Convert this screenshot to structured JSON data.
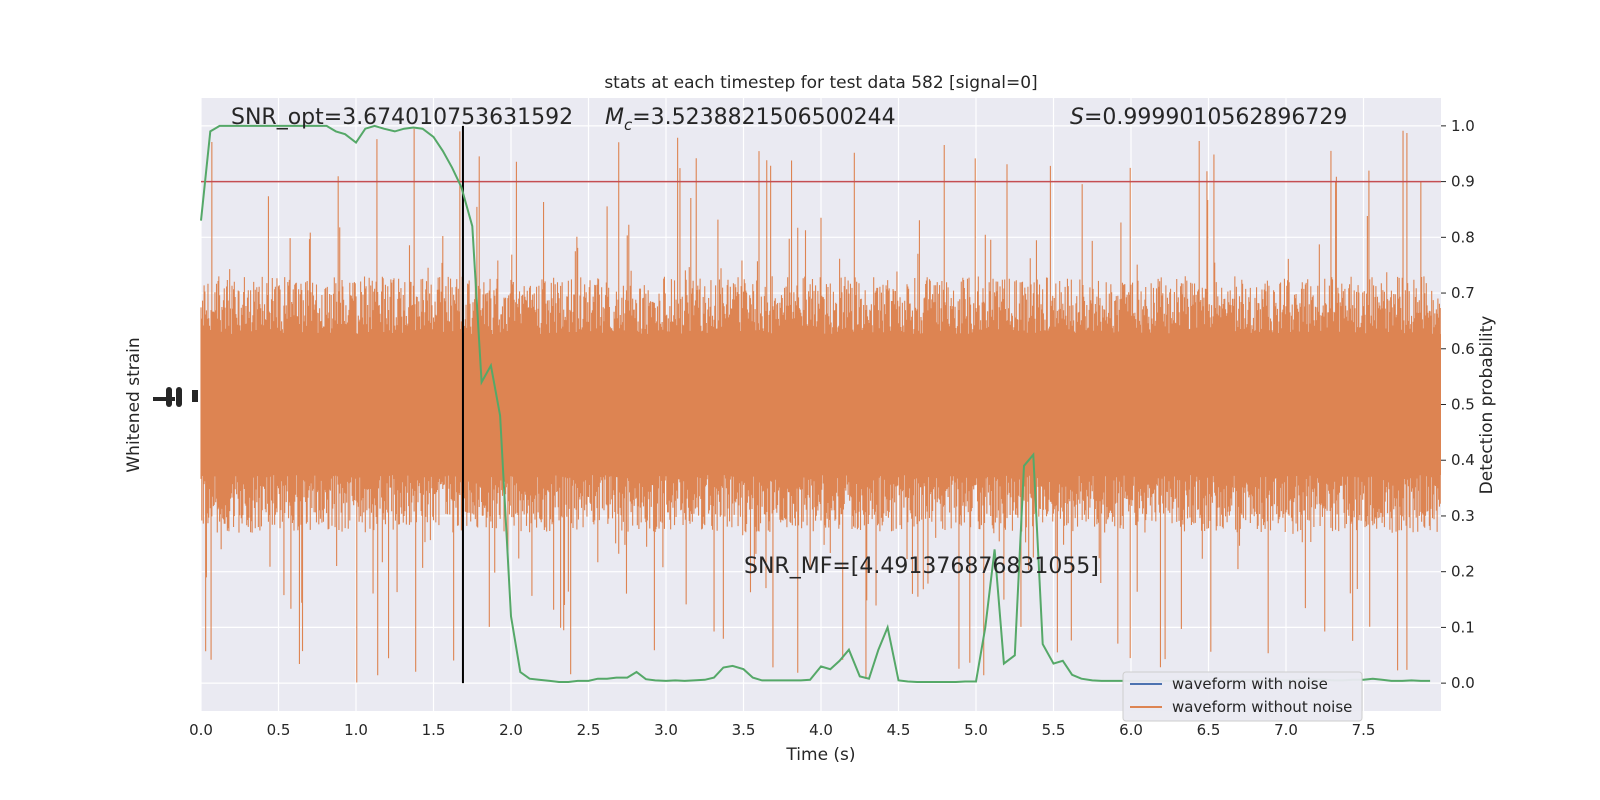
{
  "chart_data": {
    "type": "line",
    "title": "stats at each timestep for test data 582 [signal=0]",
    "xlabel": "Time (s)",
    "ylabel_left": "Whitened strain",
    "ylabel_right": "Detection probability",
    "xlim": [
      0,
      8.0
    ],
    "ylim_right": [
      -0.05,
      1.05
    ],
    "xticks": [
      0.0,
      0.5,
      1.0,
      1.5,
      2.0,
      2.5,
      3.0,
      3.5,
      4.0,
      4.5,
      5.0,
      5.5,
      6.0,
      6.5,
      7.0,
      7.5
    ],
    "xtick_labels": [
      "0.0",
      "0.5",
      "1.0",
      "1.5",
      "2.0",
      "2.5",
      "3.0",
      "3.5",
      "4.0",
      "4.5",
      "5.0",
      "5.5",
      "6.0",
      "6.5",
      "7.0",
      "7.5"
    ],
    "yticks_right": [
      0.0,
      0.1,
      0.2,
      0.3,
      0.4,
      0.5,
      0.6,
      0.7,
      0.8,
      0.9,
      1.0
    ],
    "ytick_labels_right": [
      "0.0",
      "0.1",
      "0.2",
      "0.3",
      "0.4",
      "0.5",
      "0.6",
      "0.7",
      "0.8",
      "0.9",
      "1.0"
    ],
    "grid": true,
    "legend_placement": "lower-right",
    "colors": {
      "plot_bg": "#eaeaf2",
      "grid": "#ffffff",
      "with_noise": "#4c72b0",
      "without_noise": "#dd8452",
      "probability": "#55a868",
      "threshold": "#c44e52",
      "marker": "#000000"
    },
    "threshold": 0.9,
    "vertical_marker_x": 1.69,
    "annotations": {
      "snr_opt": "SNR_opt=3.674010753631592",
      "mc_symbol": "M",
      "mc_sub": "c",
      "mc_value": "=3.5238821506500244",
      "s_symbol": "S",
      "s_value": "=0.9999010562896729",
      "snr_mf": "SNR_MF=[4.491376876831055]"
    },
    "strain_band": {
      "time_range": [
        0.0,
        8.0
      ],
      "typical_envelope_prob_units": [
        0.27,
        0.73
      ],
      "extreme_envelope_prob_units": [
        -0.02,
        0.98
      ]
    },
    "series": [
      {
        "name": "waveform with noise",
        "role": "strain"
      },
      {
        "name": "waveform without noise",
        "role": "strain"
      },
      {
        "role": "probability",
        "x": [
          0.0,
          0.06,
          0.12,
          0.18,
          0.25,
          0.31,
          0.37,
          0.43,
          0.5,
          0.56,
          0.62,
          0.68,
          0.75,
          0.81,
          0.87,
          0.93,
          1.0,
          1.06,
          1.12,
          1.18,
          1.25,
          1.31,
          1.37,
          1.43,
          1.5,
          1.56,
          1.62,
          1.68,
          1.75,
          1.81,
          1.87,
          1.93,
          2.0,
          2.06,
          2.12,
          2.18,
          2.25,
          2.31,
          2.37,
          2.43,
          2.5,
          2.56,
          2.62,
          2.68,
          2.75,
          2.81,
          2.87,
          2.93,
          3.0,
          3.06,
          3.12,
          3.18,
          3.25,
          3.31,
          3.37,
          3.43,
          3.5,
          3.56,
          3.62,
          3.68,
          3.75,
          3.81,
          3.87,
          3.93,
          4.0,
          4.06,
          4.12,
          4.18,
          4.25,
          4.31,
          4.37,
          4.43,
          4.5,
          4.56,
          4.62,
          4.68,
          4.75,
          4.81,
          4.87,
          4.93,
          5.0,
          5.06,
          5.12,
          5.18,
          5.25,
          5.31,
          5.37,
          5.43,
          5.5,
          5.56,
          5.62,
          5.68,
          5.75,
          5.81,
          5.87,
          5.93,
          6.0,
          6.06,
          6.12,
          6.18,
          6.25,
          6.31,
          6.37,
          6.43,
          6.5,
          6.56,
          6.62,
          6.68,
          6.75,
          6.81,
          6.87,
          6.93,
          7.0,
          7.06,
          7.12,
          7.18,
          7.25,
          7.31,
          7.37,
          7.43,
          7.5,
          7.56,
          7.62,
          7.68,
          7.75,
          7.81,
          7.87,
          7.93
        ],
        "y": [
          0.83,
          0.99,
          1.0,
          1.0,
          1.0,
          1.0,
          1.0,
          1.0,
          1.0,
          1.0,
          1.0,
          1.0,
          1.0,
          1.0,
          0.99,
          0.985,
          0.97,
          0.995,
          1.0,
          0.995,
          0.99,
          0.995,
          0.997,
          0.995,
          0.98,
          0.955,
          0.925,
          0.89,
          0.82,
          0.54,
          0.57,
          0.48,
          0.12,
          0.02,
          0.008,
          0.006,
          0.004,
          0.002,
          0.002,
          0.004,
          0.004,
          0.008,
          0.008,
          0.01,
          0.01,
          0.02,
          0.007,
          0.005,
          0.004,
          0.005,
          0.004,
          0.005,
          0.006,
          0.01,
          0.028,
          0.031,
          0.025,
          0.01,
          0.005,
          0.005,
          0.005,
          0.005,
          0.005,
          0.006,
          0.03,
          0.025,
          0.04,
          0.06,
          0.012,
          0.008,
          0.06,
          0.1,
          0.005,
          0.003,
          0.002,
          0.002,
          0.002,
          0.002,
          0.002,
          0.003,
          0.003,
          0.1,
          0.24,
          0.035,
          0.05,
          0.39,
          0.41,
          0.07,
          0.035,
          0.04,
          0.015,
          0.008,
          0.005,
          0.004,
          0.004,
          0.004,
          0.004,
          0.004,
          0.004,
          0.004,
          0.004,
          0.005,
          0.005,
          0.005,
          0.004,
          0.004,
          0.005,
          0.005,
          0.005,
          0.005,
          0.005,
          0.005,
          0.005,
          0.005,
          0.006,
          0.006,
          0.006,
          0.005,
          0.005,
          0.006,
          0.006,
          0.008,
          0.006,
          0.004,
          0.004,
          0.005,
          0.004,
          0.004
        ]
      }
    ]
  }
}
